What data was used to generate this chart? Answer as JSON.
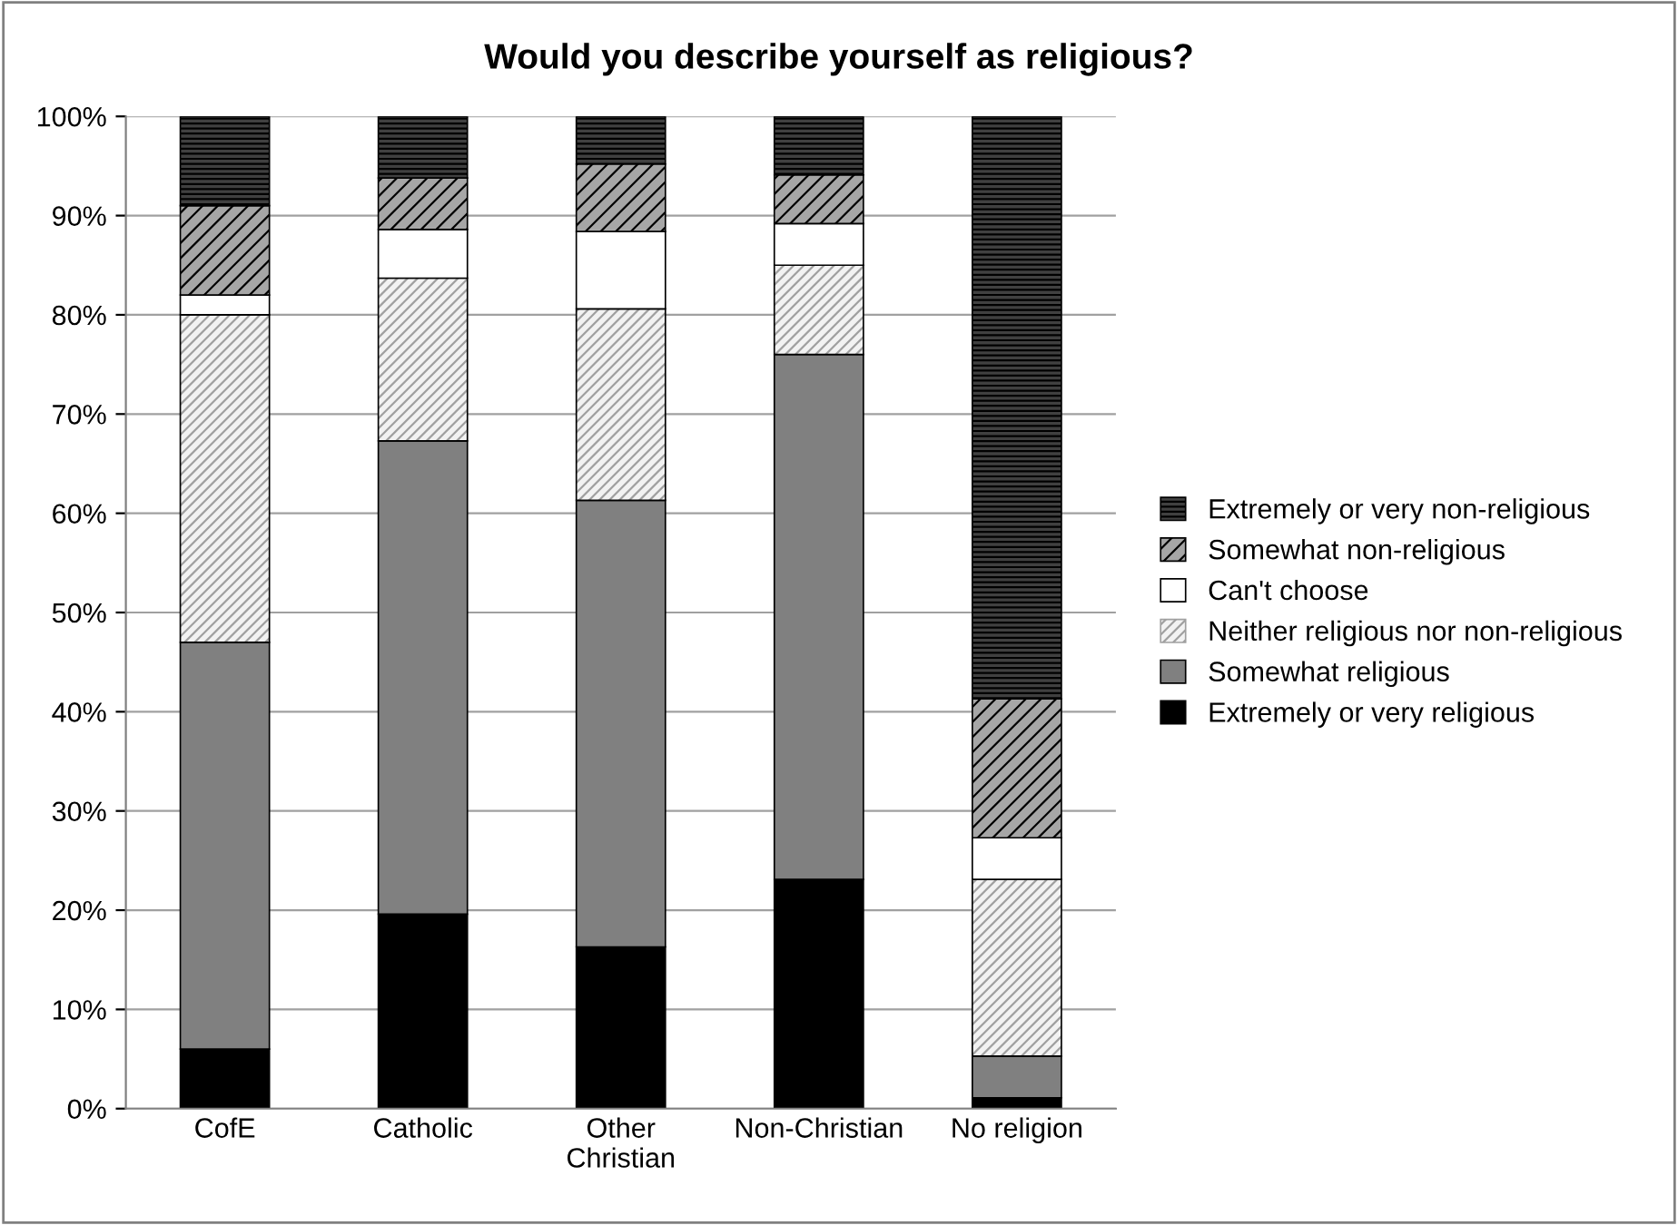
{
  "chart_data": {
    "type": "bar",
    "title": "Would you describe yourself as religious?",
    "categories": [
      "CofE",
      "Catholic",
      "Other\nChristian",
      "Non-Christian",
      "No religion"
    ],
    "stacked": true,
    "series": [
      {
        "name": "Extremely or very religious",
        "color": "#000000",
        "values": [
          6,
          19.6,
          16.3,
          23.1,
          1.1
        ]
      },
      {
        "name": "Somewhat religious",
        "color": "#808080",
        "values": [
          41,
          47.7,
          45,
          52.9,
          4.2
        ]
      },
      {
        "name": "Neither religious nor non-religious",
        "color": "#f2f2f2",
        "values": [
          33,
          16.4,
          19.3,
          9,
          17.8
        ]
      },
      {
        "name": "Can't choose",
        "color": "#ffffff",
        "values": [
          2,
          4.9,
          7.8,
          4.2,
          4.2
        ]
      },
      {
        "name": "Somewhat non-religious",
        "color": "#a6a6a6",
        "values": [
          9,
          5.2,
          6.8,
          4.9,
          14
        ]
      },
      {
        "name": "Extremely or very non-religious",
        "color": "#404040",
        "values": [
          9,
          6.2,
          4.8,
          5.9,
          58.7
        ]
      }
    ],
    "ylim": [
      0,
      100
    ],
    "yticks": [
      {
        "value": 0,
        "label": "0%"
      },
      {
        "value": 10,
        "label": "10%"
      },
      {
        "value": 20,
        "label": "20%"
      },
      {
        "value": 30,
        "label": "30%"
      },
      {
        "value": 40,
        "label": "40%"
      },
      {
        "value": 50,
        "label": "50%"
      },
      {
        "value": 60,
        "label": "60%"
      },
      {
        "value": 70,
        "label": "70%"
      },
      {
        "value": 80,
        "label": "80%"
      },
      {
        "value": 90,
        "label": "90%"
      },
      {
        "value": 100,
        "label": "100%"
      }
    ],
    "grid": "y",
    "legend": "right"
  }
}
